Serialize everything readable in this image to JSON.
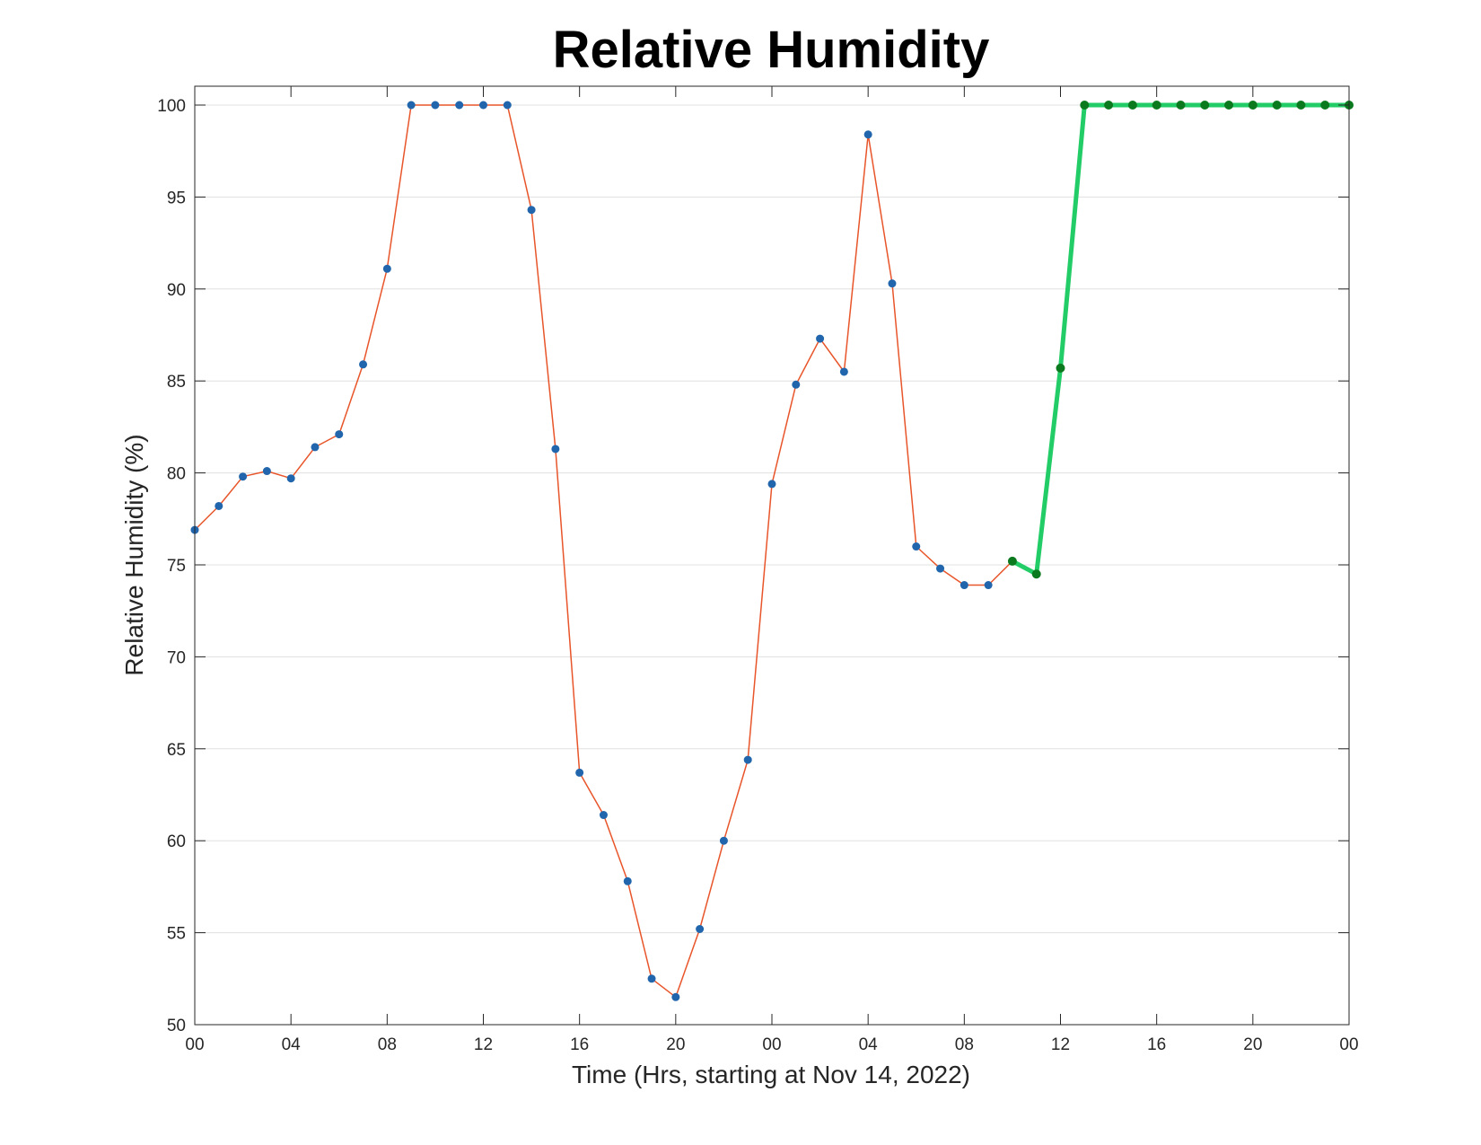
{
  "chart_data": {
    "type": "line",
    "title": "Relative Humidity",
    "xlabel": "Time (Hrs, starting at Nov 14, 2022)",
    "ylabel": "Relative Humidity (%)",
    "x_tick_labels": [
      "00",
      "04",
      "08",
      "12",
      "16",
      "20",
      "00",
      "04",
      "08",
      "12",
      "16",
      "20",
      "00"
    ],
    "y_ticks": [
      50,
      55,
      60,
      65,
      70,
      75,
      80,
      85,
      90,
      95,
      100
    ],
    "xlim": [
      0,
      48
    ],
    "ylim": [
      50,
      101
    ],
    "grid": "horizontal",
    "colors": {
      "observed_line": "#e8552a",
      "observed_marker": "#2166ac",
      "forecast_line": "#22cc66",
      "forecast_marker": "#0b7a1f",
      "grid": "#e0e0e0",
      "axis": "#262626"
    },
    "series": [
      {
        "x": [
          0,
          1,
          2,
          3,
          4,
          5,
          6,
          7,
          8,
          9,
          10,
          11,
          12,
          13,
          14,
          15,
          16,
          17,
          18,
          19,
          20,
          21,
          22,
          23,
          24,
          25,
          26,
          27,
          28,
          29,
          30,
          31,
          32,
          33,
          34,
          35
        ],
        "values": [
          76.9,
          78.2,
          79.8,
          80.1,
          79.7,
          81.4,
          82.1,
          85.9,
          91.1,
          100,
          100,
          100,
          100,
          100,
          94.3,
          81.3,
          63.7,
          61.4,
          57.8,
          52.5,
          51.5,
          55.2,
          60.0,
          64.4,
          79.4,
          84.8,
          87.3,
          85.5,
          98.4,
          90.3,
          76.0,
          74.8,
          73.9,
          73.9,
          75.2,
          74.5
        ]
      },
      {
        "x": [
          34,
          35,
          36,
          37,
          38,
          39,
          40,
          41,
          42,
          43,
          44,
          45,
          46,
          47,
          48
        ],
        "values": [
          75.2,
          74.5,
          85.7,
          100,
          100,
          100,
          100,
          100,
          100,
          100,
          100,
          100,
          100,
          100,
          100
        ]
      }
    ]
  }
}
